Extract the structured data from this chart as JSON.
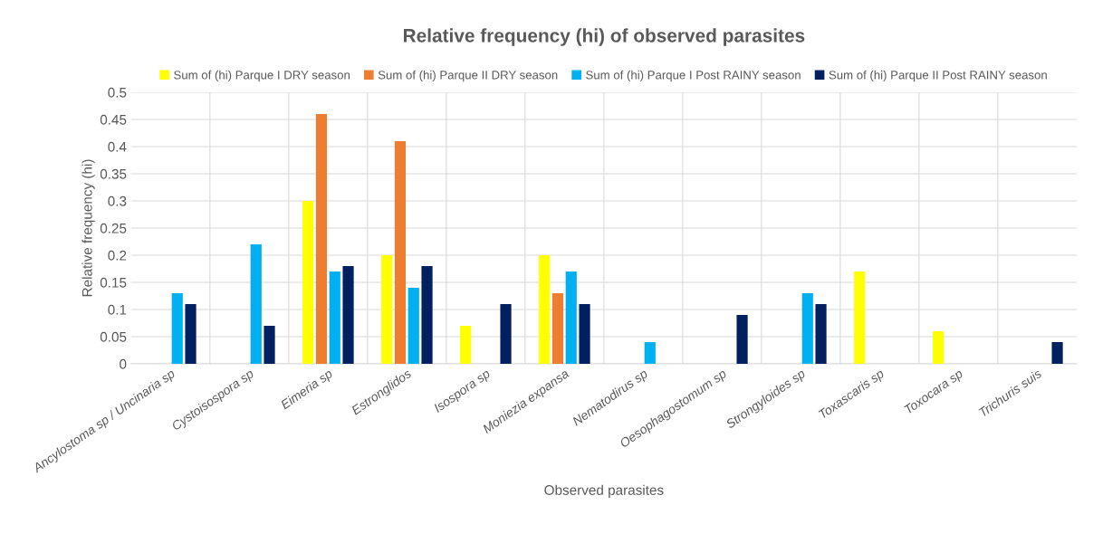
{
  "chart_data": {
    "type": "bar",
    "title": "Relative frequency (hi) of observed parasites",
    "xlabel": "Observed parasites",
    "ylabel": "Relative frequency (hi)",
    "categories": [
      "Ancylostoma sp / Uncinaria sp",
      "Cystoisospora sp",
      "Eimeria sp",
      "Estronglidos",
      "Isospora sp",
      "Moniezia expansa",
      "Nematodirus sp",
      "Oesophagostomum sp",
      "Strongyloides sp",
      "Toxascaris sp",
      "Toxocara sp",
      "Trichuris suis"
    ],
    "series": [
      {
        "name": "Sum of (hi) Parque I DRY season",
        "color": "#ffff00",
        "values": [
          null,
          null,
          0.3,
          0.2,
          0.07,
          0.2,
          null,
          null,
          null,
          0.17,
          0.06,
          null
        ]
      },
      {
        "name": "Sum of (hi) Parque II DRY season",
        "color": "#ed7d31",
        "values": [
          null,
          null,
          0.46,
          0.41,
          null,
          0.13,
          null,
          null,
          null,
          null,
          null,
          null
        ]
      },
      {
        "name": "Sum of (hi) Parque I Post RAINY season",
        "color": "#00b0f0",
        "values": [
          0.13,
          0.22,
          0.17,
          0.14,
          null,
          0.17,
          0.04,
          null,
          0.13,
          null,
          null,
          null
        ]
      },
      {
        "name": "Sum of (hi) Parque II Post RAINY season",
        "color": "#002060",
        "values": [
          0.11,
          0.07,
          0.18,
          0.18,
          0.11,
          0.11,
          null,
          0.09,
          0.11,
          null,
          null,
          0.04
        ]
      }
    ],
    "ylim": [
      0,
      0.5
    ],
    "yticks": [
      0,
      0.05,
      0.1,
      0.15,
      0.2,
      0.25,
      0.3,
      0.35,
      0.4,
      0.45,
      0.5
    ],
    "grid": true,
    "legend": "top"
  }
}
